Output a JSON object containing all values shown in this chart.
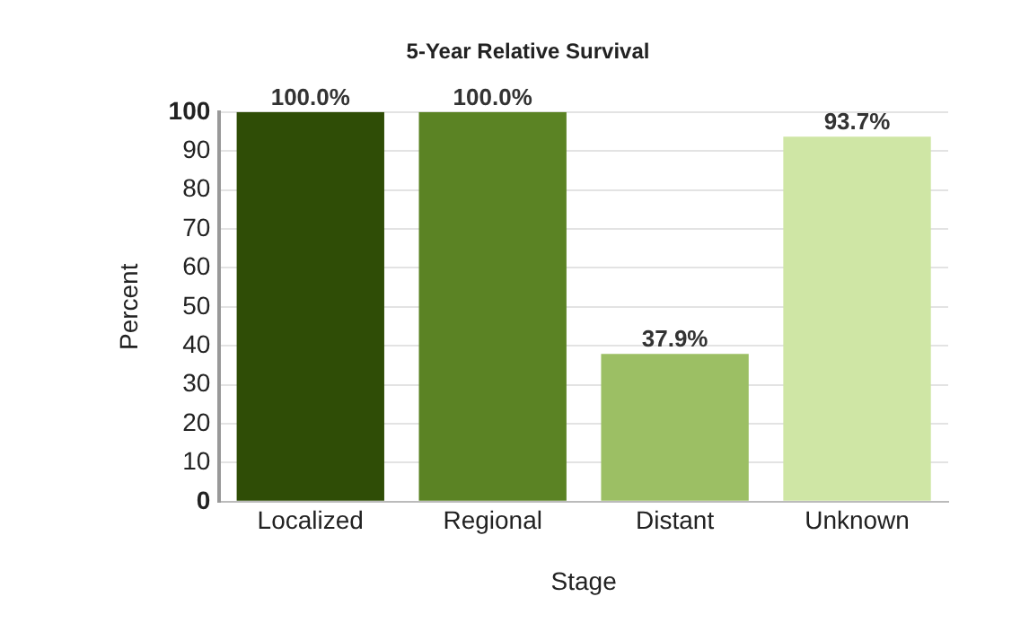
{
  "chart_data": {
    "type": "bar",
    "title": "5-Year Relative Survival",
    "xlabel": "Stage",
    "ylabel": "Percent",
    "categories": [
      "Localized",
      "Regional",
      "Distant",
      "Unknown"
    ],
    "values": [
      100,
      100,
      37.9,
      93.7
    ],
    "colors": [
      "#2f4d06",
      "#5b8324",
      "#9cbf64",
      "#cfe6a5"
    ],
    "value_labels": [
      "100.0%",
      "100.0%",
      "37.9%",
      "93.7%"
    ],
    "ylim": [
      0,
      100
    ],
    "yticks": [
      0,
      10,
      20,
      30,
      40,
      50,
      60,
      70,
      80,
      90,
      100
    ],
    "grid": "y",
    "legend": false
  }
}
